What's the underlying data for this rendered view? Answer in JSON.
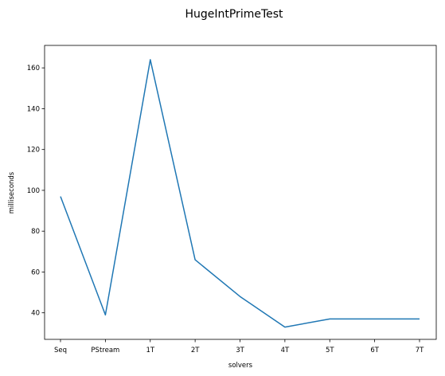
{
  "chart_data": {
    "type": "line",
    "title": "HugeIntPrimeTest",
    "xlabel": "solvers",
    "ylabel": "milliseconds",
    "categories": [
      "Seq",
      "PStream",
      "1T",
      "2T",
      "3T",
      "4T",
      "5T",
      "6T",
      "7T"
    ],
    "series": [
      {
        "values": [
          97,
          39,
          164,
          66,
          48,
          33,
          37,
          37,
          37
        ],
        "color": "#1f77b4"
      }
    ],
    "ylim": [
      27,
      171
    ],
    "yticks": [
      40,
      60,
      80,
      100,
      120,
      140,
      160
    ],
    "grid": false,
    "legend": "none"
  }
}
